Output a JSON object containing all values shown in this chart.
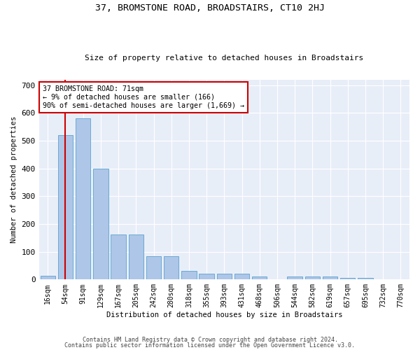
{
  "title": "37, BROMSTONE ROAD, BROADSTAIRS, CT10 2HJ",
  "subtitle": "Size of property relative to detached houses in Broadstairs",
  "xlabel": "Distribution of detached houses by size in Broadstairs",
  "ylabel": "Number of detached properties",
  "bar_categories": [
    "16sqm",
    "54sqm",
    "91sqm",
    "129sqm",
    "167sqm",
    "205sqm",
    "242sqm",
    "280sqm",
    "318sqm",
    "355sqm",
    "393sqm",
    "431sqm",
    "468sqm",
    "506sqm",
    "544sqm",
    "582sqm",
    "619sqm",
    "657sqm",
    "695sqm",
    "732sqm",
    "770sqm"
  ],
  "bar_values": [
    13,
    520,
    580,
    400,
    163,
    163,
    83,
    83,
    30,
    20,
    20,
    20,
    10,
    0,
    10,
    10,
    10,
    5,
    5,
    0,
    0
  ],
  "bar_color": "#aec6e8",
  "bar_edgecolor": "#6aaad4",
  "property_line_label": "37 BROMSTONE ROAD: 71sqm",
  "annotation_line1": "← 9% of detached houses are smaller (166)",
  "annotation_line2": "90% of semi-detached houses are larger (1,669) →",
  "annotation_box_color": "#ffffff",
  "annotation_box_edgecolor": "#cc0000",
  "vline_color": "#cc0000",
  "ylim": [
    0,
    720
  ],
  "yticks": [
    0,
    100,
    200,
    300,
    400,
    500,
    600,
    700
  ],
  "bg_color": "#e8eef8",
  "footer_line1": "Contains HM Land Registry data © Crown copyright and database right 2024.",
  "footer_line2": "Contains public sector information licensed under the Open Government Licence v3.0."
}
